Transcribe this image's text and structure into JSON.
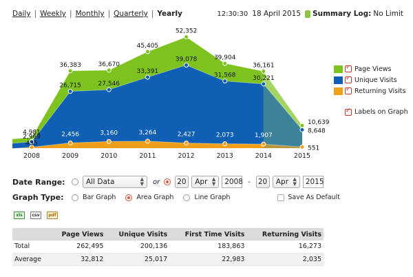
{
  "period_tabs": [
    {
      "label": "Daily",
      "active": false
    },
    {
      "label": "Weekly",
      "active": false
    },
    {
      "label": "Monthly",
      "active": false
    },
    {
      "label": "Quarterly",
      "active": false
    },
    {
      "label": "Yearly",
      "active": true
    }
  ],
  "header": {
    "time": "12:30:30",
    "date": "18 April 2015",
    "summary_log_label": "Summary Log:",
    "summary_log_value": "No Limit",
    "summary_color": "#8cc63f"
  },
  "chart_data": {
    "type": "area",
    "x": [
      "2008",
      "2009",
      "2010",
      "2011",
      "2012",
      "2013",
      "2014",
      "2015"
    ],
    "series": [
      {
        "name": "Page Views",
        "color": "#7dc21e",
        "values": [
          4981,
          36383,
          36670,
          45405,
          52352,
          39904,
          36161,
          10639
        ]
      },
      {
        "name": "Unique Visits",
        "color": "#0f5fb4",
        "values": [
          2969,
          26715,
          27546,
          33391,
          39078,
          31568,
          30221,
          8648
        ]
      },
      {
        "name": "Returning Visits",
        "color": "#f0a018",
        "values": [
          435,
          2456,
          3160,
          3264,
          2427,
          2073,
          1907,
          551
        ]
      }
    ],
    "ylim": [
      0,
      60000
    ],
    "partial_last_period": true,
    "legend_position": "right",
    "grid": false
  },
  "legend": {
    "labels_on_graph_label": "Labels on Graph",
    "labels_on_graph_checked": true
  },
  "controls": {
    "date_range_label": "Date Range:",
    "all_data_option": "All Data",
    "or_label": "or",
    "from_day": "20",
    "from_month": "Apr",
    "from_year": "2008",
    "to_day": "20",
    "to_month": "Apr",
    "to_year": "2015",
    "graph_type_label": "Graph Type:",
    "bar_graph": "Bar Graph",
    "area_graph": "Area Graph",
    "line_graph": "Line Graph",
    "save_default": "Save As Default"
  },
  "export": {
    "excel": "xls",
    "csv": "csv",
    "pdf": "pdf"
  },
  "stats_table": {
    "headers": [
      "",
      "Page Views",
      "Unique Visits",
      "First Time Visits",
      "Returning Visits"
    ],
    "rows": [
      [
        "Total",
        "262,495",
        "200,136",
        "183,863",
        "16,273"
      ],
      [
        "Average",
        "32,812",
        "25,017",
        "22,983",
        "2,035"
      ]
    ]
  }
}
